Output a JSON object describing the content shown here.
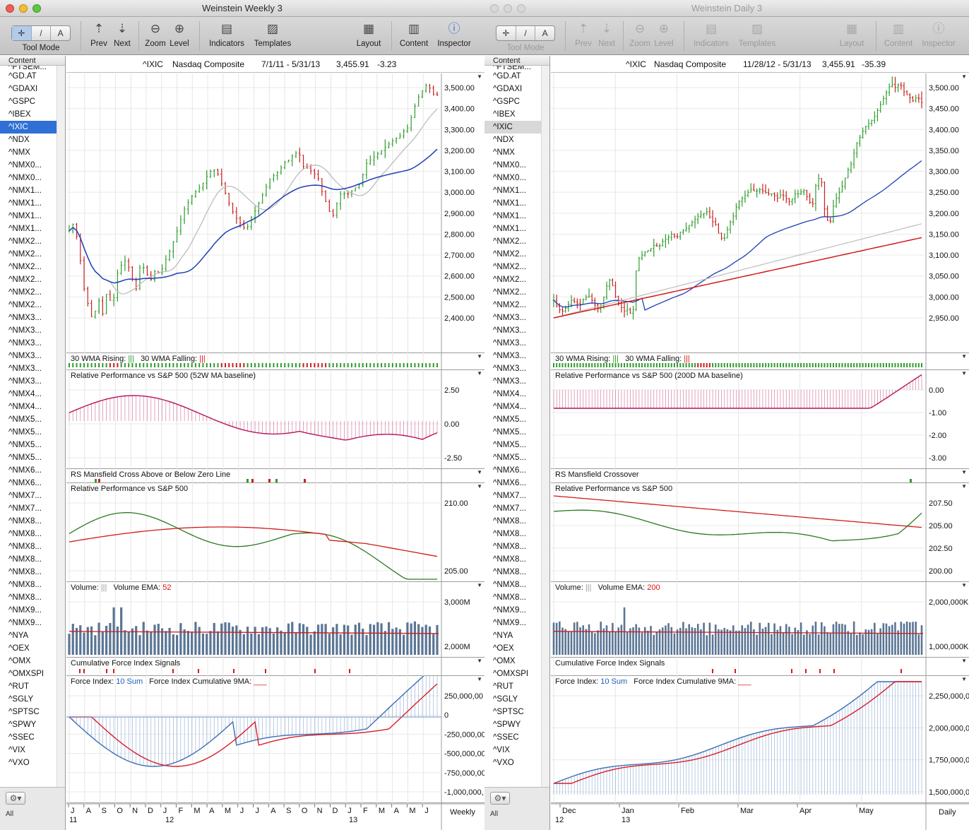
{
  "windows": [
    {
      "id": "A",
      "active": true,
      "title": "Weinstein Weekly 3",
      "toolbar": {
        "tool_mode": "Tool Mode",
        "prev": "Prev",
        "next": "Next",
        "zoom": "Zoom",
        "level": "Level",
        "indicators": "Indicators",
        "templates": "Templates",
        "layout": "Layout",
        "content": "Content",
        "inspector": "Inspector",
        "seg": [
          "✛",
          "/",
          "A"
        ]
      },
      "header": {
        "symbol": "^IXIC",
        "name": "Nasdaq Composite",
        "range": "7/1/11 - 5/31/13",
        "price": "3,455.91",
        "change": "-3.23"
      },
      "period": "Weekly",
      "panes": {
        "price": {
          "yticks": [
            "3,500.00",
            "3,400.00",
            "3,300.00",
            "3,200.00",
            "3,100.00",
            "3,000.00",
            "2,900.00",
            "2,800.00",
            "2,700.00",
            "2,600.00",
            "2,500.00",
            "2,400.00"
          ]
        },
        "wma": {
          "label_rising": "30 WMA Rising:",
          "label_falling": "30 WMA Falling:"
        },
        "rp52": {
          "label": "Relative Performance vs S&P 500 (52W MA baseline)",
          "yticks": [
            "2.50",
            "0.00",
            "-2.50"
          ]
        },
        "rsm": {
          "label": "RS Mansfield Cross Above or Below Zero Line"
        },
        "rp": {
          "label": "Relative Performance vs S&P 500",
          "yticks": [
            "210.00",
            "205.00"
          ]
        },
        "vol": {
          "label": "Volume:",
          "ema_label": "Volume EMA:",
          "ema_value": "52",
          "yticks": [
            "3,000M",
            "2,000M"
          ]
        },
        "cfi": {
          "label": "Cumulative Force Index Signals"
        },
        "fi": {
          "label": "Force Index:",
          "sum": "10 Sum",
          "cum_label": "Force Index Cumulative 9MA:",
          "yticks": [
            "250,000,00",
            "0",
            "-250,000,00",
            "-500,000,00",
            "-750,000,00",
            "-1,000,000,"
          ]
        }
      },
      "xaxis": {
        "months": [
          "J",
          "A",
          "S",
          "O",
          "N",
          "D",
          "J",
          "F",
          "M",
          "A",
          "M",
          "J",
          "J",
          "A",
          "S",
          "O",
          "N",
          "D",
          "J",
          "F",
          "M",
          "A",
          "M",
          "J"
        ],
        "years": [
          "11",
          "12",
          "13"
        ]
      }
    },
    {
      "id": "B",
      "active": false,
      "title": "Weinstein Daily 3",
      "toolbar": {
        "tool_mode": "Tool Mode",
        "prev": "Prev",
        "next": "Next",
        "zoom": "Zoom",
        "level": "Level",
        "indicators": "Indicators",
        "templates": "Templates",
        "layout": "Layout",
        "content": "Content",
        "inspector": "Inspector",
        "seg": [
          "✛",
          "/",
          "A"
        ]
      },
      "header": {
        "symbol": "^IXIC",
        "name": "Nasdaq Composite",
        "range": "11/28/12 - 5/31/13",
        "price": "3,455.91",
        "change": "-35.39"
      },
      "period": "Daily",
      "panes": {
        "price": {
          "yticks": [
            "3,500.00",
            "3,450.00",
            "3,400.00",
            "3,350.00",
            "3,300.00",
            "3,250.00",
            "3,200.00",
            "3,150.00",
            "3,100.00",
            "3,050.00",
            "3,000.00",
            "2,950.00"
          ]
        },
        "wma": {
          "label_rising": "30 WMA Rising:",
          "label_falling": "30 WMA Falling:"
        },
        "rp52": {
          "label": "Relative Performance vs S&P 500 (200D MA baseline)",
          "yticks": [
            "0.00",
            "-1.00",
            "-2.00",
            "-3.00"
          ]
        },
        "rsm": {
          "label": "RS Mansfield Crossover"
        },
        "rp": {
          "label": "Relative Performance vs S&P 500",
          "yticks": [
            "207.50",
            "205.00",
            "202.50",
            "200.00"
          ]
        },
        "vol": {
          "label": "Volume:",
          "ema_label": "Volume EMA:",
          "ema_value": "200",
          "yticks": [
            "2,000,000K",
            "1,000,000K"
          ]
        },
        "cfi": {
          "label": "Cumulative Force Index Signals"
        },
        "fi": {
          "label": "Force Index:",
          "sum": "10 Sum",
          "cum_label": "Force Index Cumulative 9MA:",
          "yticks": [
            "2,250,000,0",
            "2,000,000,0",
            "1,750,000,0",
            "1,500,000,0"
          ]
        }
      },
      "xaxis": {
        "months": [
          "Dec",
          "Jan",
          "Feb",
          "Mar",
          "Apr",
          "May"
        ],
        "years": [
          "12",
          "13"
        ]
      }
    }
  ],
  "sidebar": {
    "header": "Content",
    "items": [
      "^FTSEM...",
      "^GD.AT",
      "^GDAXI",
      "^GSPC",
      "^IBEX",
      "^IXIC",
      "^NDX",
      "^NMX",
      "^NMX0...",
      "^NMX0...",
      "^NMX1...",
      "^NMX1...",
      "^NMX1...",
      "^NMX1...",
      "^NMX2...",
      "^NMX2...",
      "^NMX2...",
      "^NMX2...",
      "^NMX2...",
      "^NMX2...",
      "^NMX3...",
      "^NMX3...",
      "^NMX3...",
      "^NMX3...",
      "^NMX3...",
      "^NMX3...",
      "^NMX4...",
      "^NMX4...",
      "^NMX5...",
      "^NMX5...",
      "^NMX5...",
      "^NMX5...",
      "^NMX6...",
      "^NMX6...",
      "^NMX7...",
      "^NMX7...",
      "^NMX8...",
      "^NMX8...",
      "^NMX8...",
      "^NMX8...",
      "^NMX8...",
      "^NMX8...",
      "^NMX8...",
      "^NMX9...",
      "^NMX9...",
      "^NYA",
      "^OEX",
      "^OMX",
      "^OMXSPI",
      "^RUT",
      "^SGLY",
      "^SPTSC",
      "^SPWY",
      "^SSEC",
      "^VIX",
      "^VXO"
    ],
    "selected": "^IXIC",
    "footer_all": "All"
  },
  "colors": {
    "up": "#2e9d2e",
    "down": "#cc1f1f",
    "ma_blue": "#1f3fb5",
    "ma_gray": "#bdbdbd",
    "ma_red": "#d21a1a",
    "rp_magenta": "#b5145a",
    "rp_green": "#2a7a1e",
    "vol_bar": "#5a7594",
    "fi_blue": "#3b6fb5",
    "fi_red": "#d81d2a"
  },
  "chart_data": [
    {
      "type": "line",
      "window": "Weinstein Weekly 3",
      "title": "^IXIC Nasdaq Composite 7/1/11 - 5/31/13",
      "series": [
        {
          "name": "",
          "values": [
            2800,
            2840,
            2720,
            2530,
            2440,
            2360,
            2480,
            2400,
            2520,
            2420,
            2590,
            2640,
            2660,
            2580,
            2520,
            2650,
            2600,
            2560,
            2610,
            2590,
            2650,
            2700,
            2760,
            2830,
            2900,
            2940,
            2980,
            3000,
            3030,
            3070,
            3100,
            3080,
            3020,
            2960,
            2900,
            2860,
            2830,
            2800,
            2860,
            2900,
            2950,
            3000,
            3050,
            3070,
            3090,
            3130,
            3140,
            3170,
            3180,
            3110,
            3100,
            3080,
            3060,
            2980,
            2920,
            2860,
            2930,
            2990,
            2970,
            2990,
            3010,
            3030,
            3120,
            3140,
            3160,
            3180,
            3200,
            3220,
            3240,
            3250,
            3280,
            3300,
            3380,
            3440,
            3480,
            3510,
            3460,
            3456
          ]
        }
      ],
      "ylim": [
        2340,
        3540
      ]
    },
    {
      "type": "line",
      "window": "Weinstein Daily 3",
      "title": "^IXIC Nasdaq Composite 11/28/12 - 5/31/13",
      "series": [
        {
          "name": "",
          "values": [
            3010,
            2990,
            2985,
            2995,
            3010,
            3005,
            3000,
            3015,
            3020,
            3005,
            2990,
            3000,
            3040,
            3060,
            3020,
            3000,
            2985,
            2990,
            2970,
            3100,
            3110,
            3120,
            3125,
            3135,
            3130,
            3145,
            3150,
            3160,
            3150,
            3165,
            3170,
            3180,
            3190,
            3200,
            3205,
            3210,
            3190,
            3180,
            3150,
            3150,
            3180,
            3200,
            3230,
            3240,
            3250,
            3260,
            3255,
            3260,
            3255,
            3250,
            3250,
            3240,
            3250,
            3240,
            3230,
            3250,
            3250,
            3260,
            3240,
            3220,
            3280,
            3290,
            3200,
            3180,
            3230,
            3250,
            3270,
            3300,
            3320,
            3360,
            3380,
            3400,
            3410,
            3420,
            3440,
            3460,
            3480,
            3500,
            3490,
            3500,
            3480,
            3470,
            3460,
            3470,
            3456
          ]
        }
      ],
      "ylim": [
        2930,
        3540
      ]
    }
  ]
}
